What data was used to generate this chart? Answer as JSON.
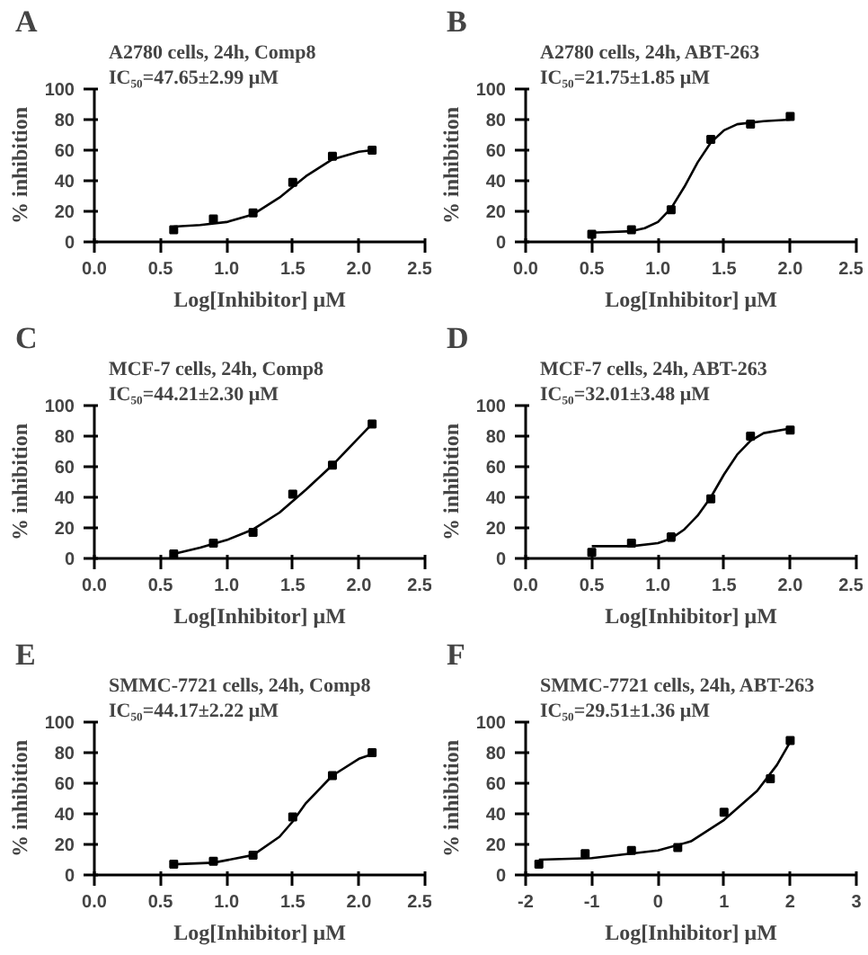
{
  "chart_data": [
    {
      "type": "scatter",
      "title": "A2780 cells, 24h, Comp8",
      "subtitle": "IC₅₀=47.65±2.99 μM",
      "annotations": [
        "A"
      ],
      "xlabel": "Log[Inhibitor] μM",
      "ylabel": "% inhibition",
      "grid": false,
      "xlim": [
        0,
        2.5
      ],
      "xticks": [
        {
          "value": 0,
          "label": "0.0"
        },
        {
          "value": 0.5,
          "label": "0.5"
        },
        {
          "value": 1,
          "label": "1.0"
        },
        {
          "value": 1.5,
          "label": "1.5"
        },
        {
          "value": 2,
          "label": "2.0"
        },
        {
          "value": 2.5,
          "label": "2.5"
        }
      ],
      "ylim": [
        0,
        100
      ],
      "yticks": [
        0,
        20,
        40,
        60,
        80,
        100
      ],
      "series": [
        {
          "marker": "square",
          "color": "#000000",
          "x": [
            0.6,
            0.9,
            1.2,
            1.5,
            1.8,
            2.1
          ],
          "values": [
            8,
            15,
            19,
            39,
            56,
            60
          ],
          "errors": [
            1,
            1.5,
            1.5,
            1.5,
            1,
            1
          ]
        },
        {
          "type": "line",
          "color": "#000000",
          "x": [
            0.6,
            0.8,
            1.0,
            1.2,
            1.4,
            1.5,
            1.6,
            1.8,
            2.0,
            2.1
          ],
          "values": [
            10,
            11,
            13,
            18,
            29,
            36,
            43,
            54,
            59,
            60
          ]
        }
      ]
    },
    {
      "type": "scatter",
      "title": "A2780 cells, 24h, ABT-263",
      "subtitle": "IC₅₀=21.75±1.85 μM",
      "annotations": [
        "B"
      ],
      "xlabel": "Log[Inhibitor] μM",
      "ylabel": "% inhibition",
      "grid": false,
      "xlim": [
        0,
        2.5
      ],
      "xticks": [
        {
          "value": 0,
          "label": "0.0"
        },
        {
          "value": 0.5,
          "label": "0.5"
        },
        {
          "value": 1,
          "label": "1.0"
        },
        {
          "value": 1.5,
          "label": "1.5"
        },
        {
          "value": 2,
          "label": "2.0"
        },
        {
          "value": 2.5,
          "label": "2.5"
        }
      ],
      "ylim": [
        0,
        100
      ],
      "yticks": [
        0,
        20,
        40,
        60,
        80,
        100
      ],
      "series": [
        {
          "marker": "square",
          "color": "#000000",
          "x": [
            0.5,
            0.8,
            1.1,
            1.4,
            1.7,
            2.0
          ],
          "values": [
            5,
            8,
            21,
            67,
            77,
            82
          ],
          "errors": [
            1,
            2,
            2,
            1.5,
            2,
            1.5
          ]
        },
        {
          "type": "line",
          "color": "#000000",
          "x": [
            0.5,
            0.8,
            0.9,
            1.0,
            1.1,
            1.2,
            1.3,
            1.4,
            1.5,
            1.6,
            1.8,
            2.0
          ],
          "values": [
            6,
            7,
            9,
            13,
            22,
            36,
            52,
            65,
            73,
            77,
            79,
            80
          ]
        }
      ]
    },
    {
      "type": "scatter",
      "title": "MCF-7 cells, 24h, Comp8",
      "subtitle": "IC₅₀=44.21±2.30 μM",
      "annotations": [
        "C"
      ],
      "xlabel": "Log[Inhibitor] μM",
      "ylabel": "% inhibition",
      "grid": false,
      "xlim": [
        0,
        2.5
      ],
      "xticks": [
        {
          "value": 0,
          "label": "0.0"
        },
        {
          "value": 0.5,
          "label": "0.5"
        },
        {
          "value": 1,
          "label": "1.0"
        },
        {
          "value": 1.5,
          "label": "1.5"
        },
        {
          "value": 2,
          "label": "2.0"
        },
        {
          "value": 2.5,
          "label": "2.5"
        }
      ],
      "ylim": [
        0,
        100
      ],
      "yticks": [
        0,
        20,
        40,
        60,
        80,
        100
      ],
      "series": [
        {
          "marker": "square",
          "color": "#000000",
          "x": [
            0.6,
            0.9,
            1.2,
            1.5,
            1.8,
            2.1
          ],
          "values": [
            3,
            10,
            17,
            42,
            61,
            88
          ],
          "errors": [
            2,
            1.5,
            2,
            1.5,
            1,
            1
          ]
        },
        {
          "type": "line",
          "color": "#000000",
          "x": [
            0.6,
            0.8,
            1.0,
            1.2,
            1.4,
            1.6,
            1.8,
            2.0,
            2.1
          ],
          "values": [
            3,
            7,
            12,
            19,
            30,
            45,
            61,
            79,
            88
          ]
        }
      ]
    },
    {
      "type": "scatter",
      "title": "MCF-7 cells, 24h, ABT-263",
      "subtitle": "IC₅₀=32.01±3.48 μM",
      "annotations": [
        "D"
      ],
      "xlabel": "Log[Inhibitor] μM",
      "ylabel": "% inhibition",
      "grid": false,
      "xlim": [
        0,
        2.5
      ],
      "xticks": [
        {
          "value": 0,
          "label": "0.0"
        },
        {
          "value": 0.5,
          "label": "0.5"
        },
        {
          "value": 1,
          "label": "1.0"
        },
        {
          "value": 1.5,
          "label": "1.5"
        },
        {
          "value": 2,
          "label": "2.0"
        },
        {
          "value": 2.5,
          "label": "2.5"
        }
      ],
      "ylim": [
        0,
        100
      ],
      "yticks": [
        0,
        20,
        40,
        60,
        80,
        100
      ],
      "series": [
        {
          "marker": "square",
          "color": "#000000",
          "x": [
            0.5,
            0.8,
            1.1,
            1.4,
            1.7,
            2.0
          ],
          "values": [
            4,
            10,
            14,
            39,
            80,
            84
          ],
          "errors": [
            2,
            2,
            2.5,
            1.5,
            1.5,
            1.5
          ]
        },
        {
          "type": "line",
          "color": "#000000",
          "x": [
            0.5,
            0.8,
            1.0,
            1.1,
            1.2,
            1.3,
            1.4,
            1.5,
            1.6,
            1.7,
            1.8,
            2.0
          ],
          "values": [
            8,
            8,
            10,
            13,
            19,
            28,
            40,
            55,
            68,
            77,
            82,
            85
          ]
        }
      ]
    },
    {
      "type": "scatter",
      "title": "SMMC-7721 cells, 24h, Comp8",
      "subtitle": "IC₅₀=44.17±2.22 μM",
      "annotations": [
        "E"
      ],
      "xlabel": "Log[Inhibitor] μM",
      "ylabel": "% inhibition",
      "grid": false,
      "xlim": [
        0,
        2.5
      ],
      "xticks": [
        {
          "value": 0,
          "label": "0.0"
        },
        {
          "value": 0.5,
          "label": "0.5"
        },
        {
          "value": 1,
          "label": "1.0"
        },
        {
          "value": 1.5,
          "label": "1.5"
        },
        {
          "value": 2,
          "label": "2.0"
        },
        {
          "value": 2.5,
          "label": "2.5"
        }
      ],
      "ylim": [
        0,
        100
      ],
      "yticks": [
        0,
        20,
        40,
        60,
        80,
        100
      ],
      "series": [
        {
          "marker": "square",
          "color": "#000000",
          "x": [
            0.6,
            0.9,
            1.2,
            1.5,
            1.8,
            2.1
          ],
          "values": [
            7,
            9,
            13,
            38,
            65,
            80
          ],
          "errors": [
            2,
            2,
            2,
            1.5,
            1,
            1
          ]
        },
        {
          "type": "line",
          "color": "#000000",
          "x": [
            0.6,
            0.9,
            1.2,
            1.4,
            1.5,
            1.6,
            1.8,
            2.0,
            2.1
          ],
          "values": [
            7,
            8,
            13,
            25,
            35,
            47,
            65,
            76,
            79
          ]
        }
      ]
    },
    {
      "type": "scatter",
      "title": "SMMC-7721 cells, 24h, ABT-263",
      "subtitle": "IC₅₀=29.51±1.36 μM",
      "annotations": [
        "F"
      ],
      "xlabel": "Log[Inhibitor] μM",
      "ylabel": "% inhibition",
      "grid": false,
      "xlim": [
        -2,
        3
      ],
      "xticks": [
        -2,
        -1,
        0,
        1,
        2,
        3
      ],
      "ylim": [
        0,
        100
      ],
      "yticks": [
        0,
        20,
        40,
        60,
        80,
        100
      ],
      "series": [
        {
          "marker": "square",
          "color": "#000000",
          "x": [
            -1.8,
            -1.1,
            -0.4,
            0.3,
            1.0,
            1.7,
            2.0
          ],
          "values": [
            7,
            14,
            16,
            18,
            41,
            63,
            88
          ],
          "errors": [
            1,
            1,
            1,
            1,
            1,
            1,
            1
          ]
        },
        {
          "type": "line",
          "color": "#000000",
          "x": [
            -1.8,
            -1.0,
            0.0,
            0.5,
            1.0,
            1.5,
            1.8,
            2.0
          ],
          "values": [
            10,
            11,
            16,
            22,
            36,
            55,
            72,
            87
          ]
        }
      ]
    }
  ]
}
